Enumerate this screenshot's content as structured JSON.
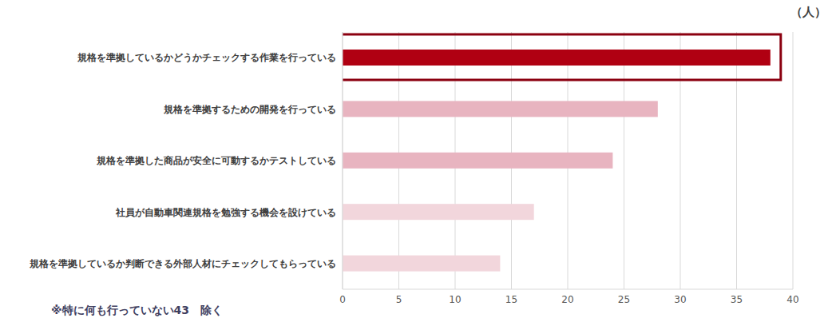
{
  "chart_data": {
    "type": "bar",
    "orientation": "horizontal",
    "xlabel": "（人）",
    "annotations": [
      "※特に何も行っていない43　除く"
    ],
    "categories": [
      "規格を準拠しているかどうかチェックする作業を行っている",
      "規格を準拠するための開発を行っている",
      "規格を準拠した商品が安全に可動するかテストしている",
      "社員が自動車関連規格を勉強する機会を設けている",
      "規格を準拠しているか判断できる外部人材にチェックしてもらっている"
    ],
    "values": [
      38,
      28,
      24,
      17,
      14
    ],
    "colors": [
      "#b00012",
      "#e8b4c0",
      "#e8b4c0",
      "#f2d6dc",
      "#f2d6dc"
    ],
    "xlim": [
      0,
      40
    ],
    "xticks": [
      0,
      5,
      10,
      15,
      20,
      25,
      30,
      35,
      40
    ],
    "grid": true
  }
}
